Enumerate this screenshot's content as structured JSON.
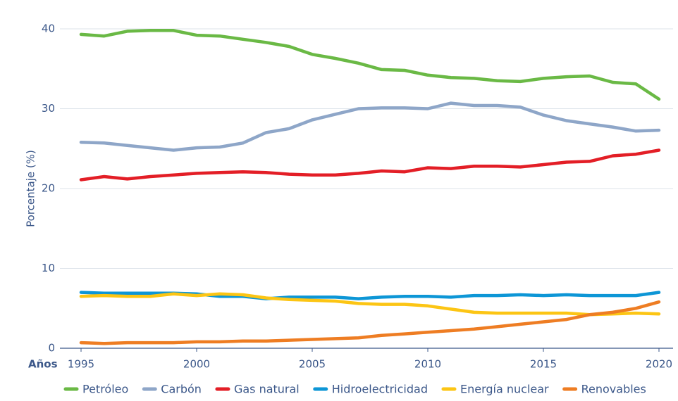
{
  "chart_data": {
    "type": "line",
    "y_label": "Porcentaje (%)",
    "x_label": "Años",
    "x": [
      1995,
      1996,
      1997,
      1998,
      1999,
      2000,
      2001,
      2002,
      2003,
      2004,
      2005,
      2006,
      2007,
      2008,
      2009,
      2010,
      2011,
      2012,
      2013,
      2014,
      2015,
      2016,
      2017,
      2018,
      2019,
      2020
    ],
    "xlim": [
      1995,
      2020
    ],
    "xticks": [
      1995,
      2000,
      2005,
      2010,
      2015,
      2020
    ],
    "ylim": [
      0,
      40
    ],
    "yticks": [
      0,
      10,
      20,
      30,
      40
    ],
    "grid": true,
    "legend": "bottom",
    "series": [
      {
        "name": "Petróleo",
        "color": "#6ab945",
        "values": [
          39.3,
          39.1,
          39.7,
          39.8,
          39.8,
          39.2,
          39.1,
          38.7,
          38.3,
          37.8,
          36.8,
          36.3,
          35.7,
          34.9,
          34.8,
          34.2,
          33.9,
          33.8,
          33.5,
          33.4,
          33.8,
          34.0,
          34.1,
          33.3,
          33.1,
          31.2
        ]
      },
      {
        "name": "Carbón",
        "color": "#8ea6c8",
        "values": [
          25.8,
          25.7,
          25.4,
          25.1,
          24.8,
          25.1,
          25.2,
          25.7,
          27.0,
          27.5,
          28.6,
          29.3,
          30.0,
          30.1,
          30.1,
          30.0,
          30.7,
          30.4,
          30.4,
          30.2,
          29.2,
          28.5,
          28.1,
          27.7,
          27.2,
          27.3
        ]
      },
      {
        "name": "Gas natural",
        "color": "#e31e26",
        "values": [
          21.1,
          21.5,
          21.2,
          21.5,
          21.7,
          21.9,
          22.0,
          22.1,
          22.0,
          21.8,
          21.7,
          21.7,
          21.9,
          22.2,
          22.1,
          22.6,
          22.5,
          22.8,
          22.8,
          22.7,
          23.0,
          23.3,
          23.4,
          24.1,
          24.3,
          24.8
        ]
      },
      {
        "name": "Hidroelectricidad",
        "color": "#0d96d6",
        "values": [
          7.0,
          6.9,
          6.9,
          6.9,
          6.9,
          6.8,
          6.5,
          6.5,
          6.2,
          6.4,
          6.4,
          6.4,
          6.2,
          6.4,
          6.5,
          6.5,
          6.4,
          6.6,
          6.6,
          6.7,
          6.6,
          6.7,
          6.6,
          6.6,
          6.6,
          7.0
        ]
      },
      {
        "name": "Energía nuclear",
        "color": "#fcc514",
        "values": [
          6.5,
          6.6,
          6.5,
          6.5,
          6.8,
          6.6,
          6.8,
          6.7,
          6.3,
          6.1,
          6.0,
          5.9,
          5.6,
          5.5,
          5.5,
          5.3,
          4.9,
          4.5,
          4.4,
          4.4,
          4.4,
          4.4,
          4.2,
          4.3,
          4.4,
          4.3
        ]
      },
      {
        "name": "Renovables",
        "color": "#ee7d23",
        "values": [
          0.7,
          0.6,
          0.7,
          0.7,
          0.7,
          0.8,
          0.8,
          0.9,
          0.9,
          1.0,
          1.1,
          1.2,
          1.3,
          1.6,
          1.8,
          2.0,
          2.2,
          2.4,
          2.7,
          3.0,
          3.3,
          3.6,
          4.2,
          4.5,
          5.0,
          5.8
        ]
      }
    ]
  }
}
